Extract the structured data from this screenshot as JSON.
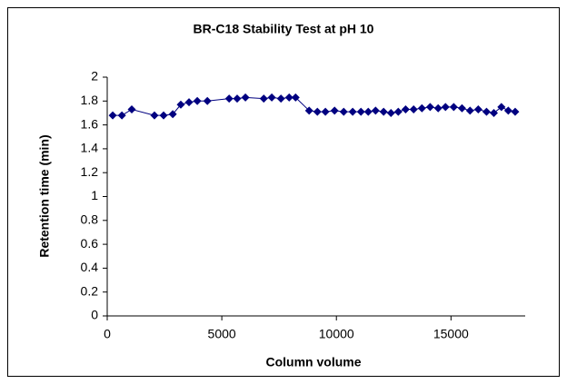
{
  "chart_data": {
    "type": "line",
    "title": "BR-C18 Stability Test at pH 10",
    "x_label": "Column volume",
    "y_label": "Retention time (min)",
    "xlim": [
      0,
      18000
    ],
    "xticks": [
      0,
      5000,
      10000,
      15000
    ],
    "ylim": [
      0,
      2
    ],
    "yticks": [
      0,
      0.2,
      0.4,
      0.6,
      0.8,
      1,
      1.2,
      1.4,
      1.6,
      1.8,
      2
    ],
    "grid": false,
    "series": [
      {
        "color": "#000080",
        "x": [
          240,
          640,
          1070,
          2060,
          2460,
          2860,
          3210,
          3570,
          3930,
          4370,
          5320,
          5670,
          6030,
          6830,
          7180,
          7580,
          7940,
          8220,
          8810,
          9170,
          9520,
          9920,
          10320,
          10710,
          11070,
          11390,
          11710,
          12060,
          12380,
          12700,
          13020,
          13370,
          13730,
          14090,
          14440,
          14760,
          15120,
          15480,
          15830,
          16190,
          16550,
          16870,
          17200,
          17500,
          17800
        ],
        "values": [
          1.68,
          1.68,
          1.73,
          1.68,
          1.68,
          1.69,
          1.77,
          1.79,
          1.8,
          1.8,
          1.82,
          1.82,
          1.83,
          1.82,
          1.83,
          1.82,
          1.83,
          1.83,
          1.72,
          1.71,
          1.71,
          1.72,
          1.71,
          1.71,
          1.71,
          1.71,
          1.72,
          1.71,
          1.7,
          1.71,
          1.73,
          1.73,
          1.74,
          1.75,
          1.74,
          1.75,
          1.75,
          1.74,
          1.72,
          1.73,
          1.71,
          1.7,
          1.75,
          1.72,
          1.71
        ]
      }
    ]
  }
}
